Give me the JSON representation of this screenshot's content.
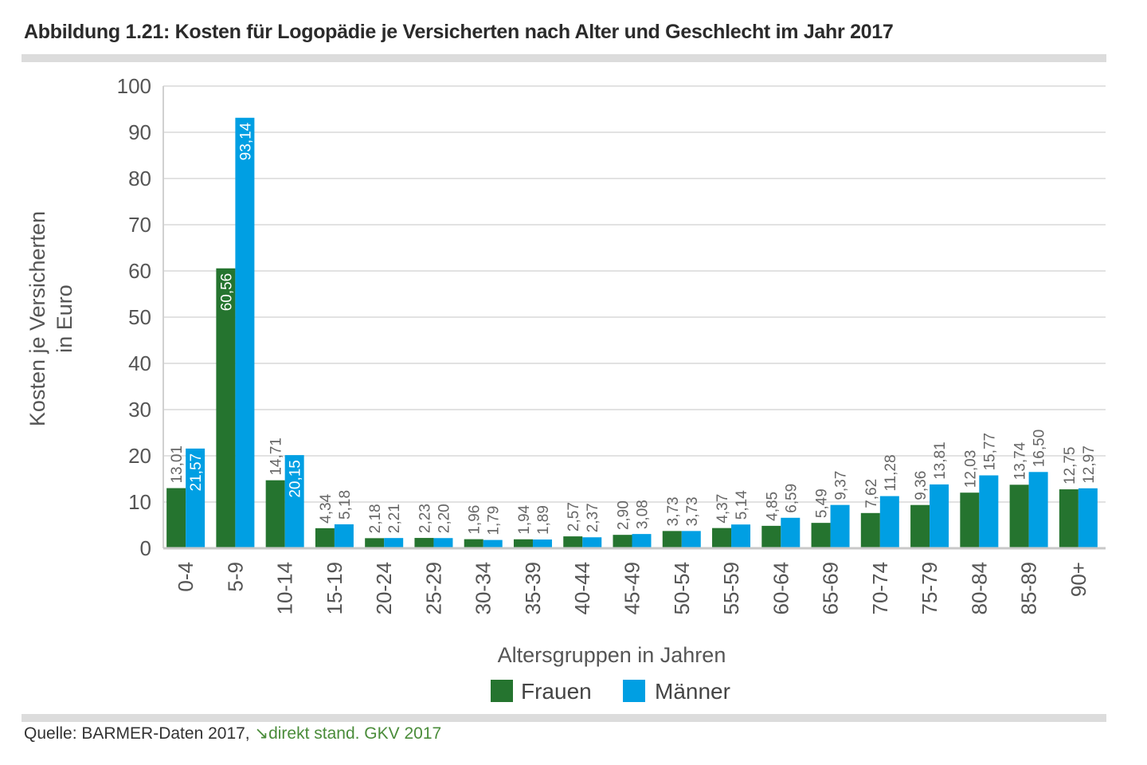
{
  "title": "Abbildung 1.21: Kosten für Logopädie je Versicherten nach Alter und Geschlecht im Jahr 2017",
  "source": {
    "text": "Quelle: BARMER-Daten 2017, ",
    "link_icon": "arrow-down-right-icon",
    "link_text": "direkt stand. GKV 2017"
  },
  "chart_data": {
    "type": "bar",
    "title": "",
    "xlabel": "Altersgruppen in Jahren",
    "ylabel": [
      "Kosten je Versicherten",
      "in Euro"
    ],
    "ylim": [
      0,
      100
    ],
    "yticks": [
      0,
      10,
      20,
      30,
      40,
      50,
      60,
      70,
      80,
      90,
      100
    ],
    "grid": true,
    "legend": "bottom",
    "categories": [
      "0-4",
      "5-9",
      "10-14",
      "15-19",
      "20-24",
      "25-29",
      "30-34",
      "35-39",
      "40-44",
      "45-49",
      "50-54",
      "55-59",
      "60-64",
      "65-69",
      "70-74",
      "75-79",
      "80-84",
      "85-89",
      "90+"
    ],
    "series": [
      {
        "name": "Frauen",
        "color": "#25742f",
        "values": [
          13.01,
          60.56,
          14.71,
          4.34,
          2.18,
          2.23,
          1.96,
          1.94,
          2.57,
          2.9,
          3.73,
          4.37,
          4.85,
          5.49,
          7.62,
          9.36,
          12.03,
          13.74,
          12.75
        ],
        "labels": [
          "13,01",
          "60,56",
          "14,71",
          "4,34",
          "2,18",
          "2,23",
          "1,96",
          "1,94",
          "2,57",
          "2,90",
          "3,73",
          "4,37",
          "4,85",
          "5,49",
          "7,62",
          "9,36",
          "12,03",
          "13,74",
          "12,75"
        ]
      },
      {
        "name": "Männer",
        "color": "#009fe3",
        "values": [
          21.57,
          93.14,
          20.15,
          5.18,
          2.21,
          2.2,
          1.79,
          1.89,
          2.37,
          3.08,
          3.73,
          5.14,
          6.59,
          9.37,
          11.28,
          13.81,
          15.77,
          16.5,
          12.97
        ],
        "labels": [
          "21,57",
          "93,14",
          "20,15",
          "5,18",
          "2,21",
          "2,20",
          "1,79",
          "1,89",
          "2,37",
          "3,08",
          "3,73",
          "5,14",
          "6,59",
          "9,37",
          "11,28",
          "13,81",
          "15,77",
          "16,50",
          "12,97"
        ]
      }
    ]
  }
}
